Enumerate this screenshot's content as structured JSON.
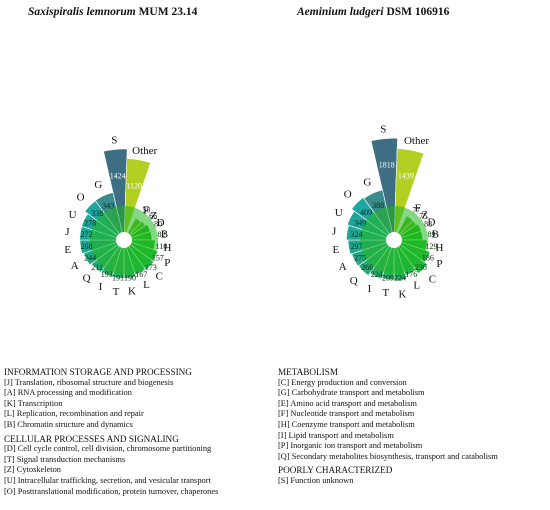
{
  "titles": [
    {
      "italic": "Saxispiralis lemnorum",
      "plain": " MUM 23.14"
    },
    {
      "italic": "Aeminium ludgeri",
      "plain": " DSM 106916"
    }
  ],
  "chart_data": [
    {
      "type": "radial-bar",
      "title": "Saxispiralis lemnorum MUM 23.14",
      "categories": [
        "S",
        "Other",
        "F",
        "Z",
        "D",
        "B",
        "H",
        "P",
        "C",
        "L",
        "K",
        "T",
        "I",
        "Q",
        "A",
        "E",
        "J",
        "U",
        "O",
        "G"
      ],
      "values": [
        1424,
        1120,
        58,
        66,
        80,
        82,
        110,
        157,
        173,
        167,
        190,
        191,
        193,
        211,
        244,
        268,
        272,
        278,
        338,
        343
      ],
      "colors": [
        "#3d6e84",
        "#b3cf22",
        "#65b51e",
        "#62b81e",
        "#25b81c",
        "#23bb1f",
        "#21bd28",
        "#20bb35",
        "#1ebb42",
        "#20b84a",
        "#25b35a",
        "#29b063",
        "#2bad6c",
        "#27aa79",
        "#22a985",
        "#1ea791",
        "#1ea896",
        "#1ea69d",
        "#1ea6a0",
        "#3a8c8e"
      ]
    },
    {
      "type": "radial-bar",
      "title": "Aeminium ludgeri DSM 106916",
      "categories": [
        "S",
        "Other",
        "F",
        "Z",
        "D",
        "B",
        "H",
        "P",
        "C",
        "L",
        "K",
        "T",
        "I",
        "Q",
        "A",
        "E",
        "J",
        "U",
        "O",
        "G"
      ],
      "values": [
        1818,
        1439,
        77,
        75,
        88,
        89,
        129,
        186,
        230,
        176,
        224,
        209,
        224,
        266,
        275,
        297,
        324,
        349,
        409,
        388
      ],
      "colors": [
        "#3d6e84",
        "#b3cf22",
        "#65b51e",
        "#62b81e",
        "#25b81c",
        "#23bb1f",
        "#21bd28",
        "#20bb35",
        "#1ebb42",
        "#20b84a",
        "#25b35a",
        "#29b063",
        "#2bad6c",
        "#27aa79",
        "#22a985",
        "#1ea791",
        "#1ea896",
        "#1ea69d",
        "#1ea6a0",
        "#3a8c8e"
      ]
    }
  ],
  "legend": {
    "left": [
      {
        "head": "INFORMATION STORAGE AND PROCESSING",
        "items": [
          "[J] Translation, ribosomal structure and biogenesis",
          "[A] RNA processing and modification",
          "[K] Transcription",
          "[L] Replication, recombination and repair",
          "[B] Chromatin structure and dynamics"
        ]
      },
      {
        "head": "CELLULAR PROCESSES AND SIGNALING",
        "items": [
          "[D] Cell cycle control, cell division, chromosome partitioning",
          "[T] Signal transduction mechanisms",
          "[Z] Cytoskeleton",
          "[U] Intracellular trafficking, secretion, and vesicular transport",
          "[O] Posttranslational modification, protein turnover, chaperones"
        ]
      }
    ],
    "right": [
      {
        "head": "METABOLISM",
        "items": [
          "[C] Energy production and conversion",
          "[G] Carbohydrate transport and metabolism",
          "[E] Amino acid transport and metabolism",
          "[F] Nucleotide transport and metabolism",
          "[H] Coenzyme transport and metabolism",
          "[I] Lipid transport and metabolism",
          "[P] Inorganic ion transport and metabolism",
          "[Q] Secondary metabolites biosynthesis, transport and catabolism"
        ]
      },
      {
        "head": "POORLY CHARACTERIZED",
        "items": [
          "[S] Function unknown"
        ]
      }
    ]
  }
}
